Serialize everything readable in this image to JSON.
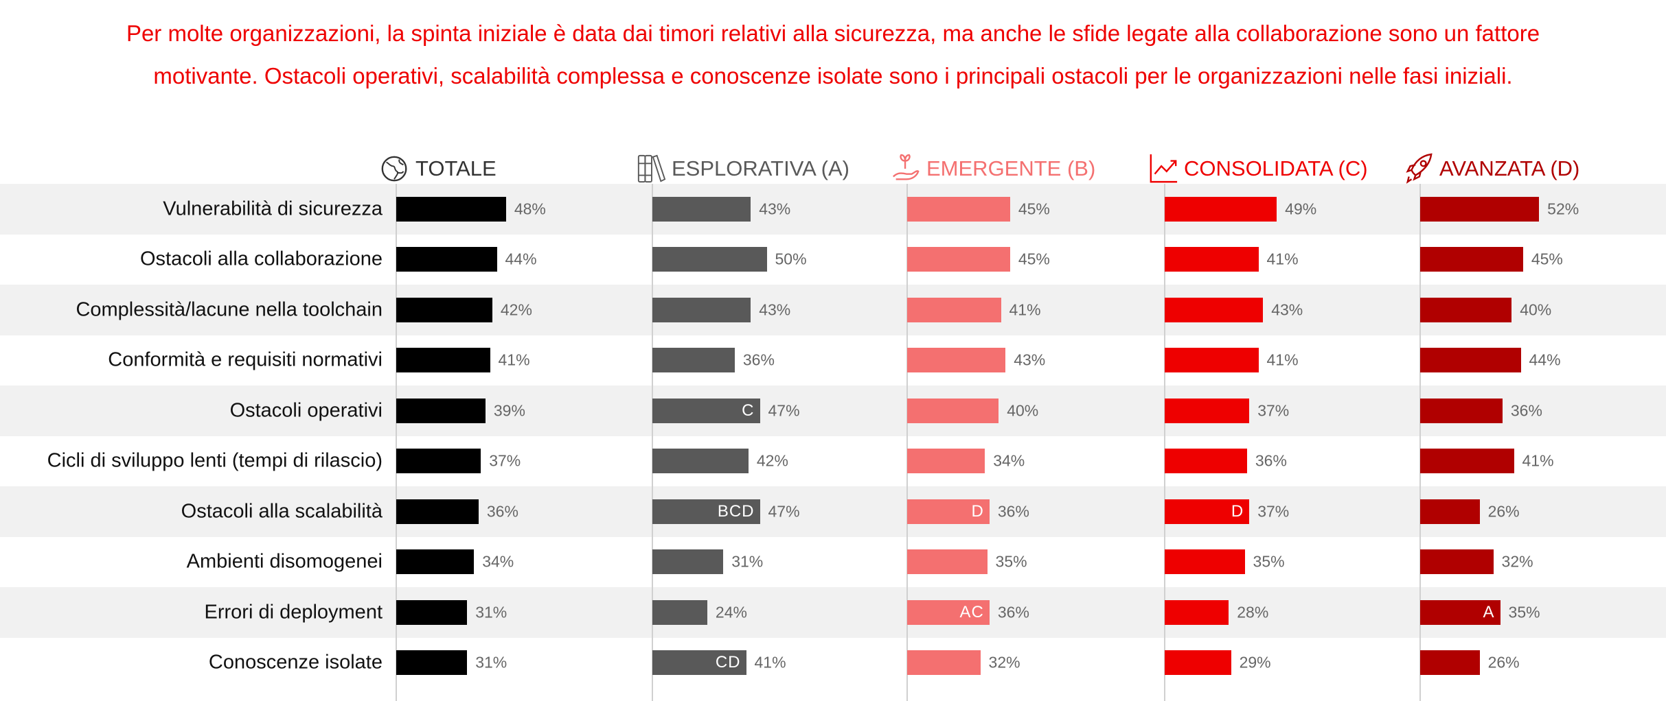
{
  "title": {
    "line1": "Per molte organizzazioni, la spinta iniziale è data dai timori relativi alla sicurezza, ma anche le sfide legate alla collaborazione sono un fattore",
    "line2": "motivante. Ostacoli operativi, scalabilità complessa e conoscenze isolate sono i principali ostacoli per le organizzazioni nelle fasi iniziali."
  },
  "chart_data": {
    "type": "bar",
    "orientation": "horizontal",
    "layout": "small-multiples",
    "value_unit": "%",
    "categories": [
      "Vulnerabilità di sicurezza",
      "Ostacoli alla collaborazione",
      "Complessità/lacune nella toolchain",
      "Conformità e requisiti normativi",
      "Ostacoli operativi",
      "Cicli di sviluppo lenti (tempi di rilascio)",
      "Ostacoli alla scalabilità",
      "Ambienti disomogenei",
      "Errori di deployment",
      "Conoscenze isolate"
    ],
    "series": [
      {
        "name": "TOTALE",
        "icon": "globe-icon",
        "color": "#000000",
        "header_color": "#333333",
        "values": [
          48,
          44,
          42,
          41,
          39,
          37,
          36,
          34,
          31,
          31
        ],
        "significance": [
          "",
          "",
          "",
          "",
          "",
          "",
          "",
          "",
          "",
          ""
        ]
      },
      {
        "name": "ESPLORATIVA (A)",
        "icon": "books-icon",
        "color": "#595959",
        "header_color": "#595959",
        "values": [
          43,
          50,
          43,
          36,
          47,
          42,
          47,
          31,
          24,
          41
        ],
        "significance": [
          "",
          "",
          "",
          "",
          "C",
          "",
          "BCD",
          "",
          "",
          "CD"
        ]
      },
      {
        "name": "EMERGENTE (B)",
        "icon": "sprout-hand-icon",
        "color": "#f47070",
        "header_color": "#f47070",
        "values": [
          45,
          45,
          41,
          43,
          40,
          34,
          36,
          35,
          36,
          32
        ],
        "significance": [
          "",
          "",
          "",
          "",
          "",
          "",
          "D",
          "",
          "AC",
          ""
        ]
      },
      {
        "name": "CONSOLIDATA (C)",
        "icon": "growth-chart-icon",
        "color": "#ee0000",
        "header_color": "#ee0000",
        "values": [
          49,
          41,
          43,
          41,
          37,
          36,
          37,
          35,
          28,
          29
        ],
        "significance": [
          "",
          "",
          "",
          "",
          "",
          "",
          "D",
          "",
          "",
          ""
        ]
      },
      {
        "name": "AVANZATA (D)",
        "icon": "rocket-icon",
        "color": "#b00000",
        "header_color": "#b00000",
        "values": [
          52,
          45,
          40,
          44,
          36,
          41,
          26,
          32,
          35,
          26
        ],
        "significance": [
          "",
          "",
          "",
          "",
          "",
          "",
          "",
          "",
          "A",
          ""
        ]
      }
    ],
    "band_color": "#f1f1f1",
    "grid": false,
    "legend": "none"
  }
}
